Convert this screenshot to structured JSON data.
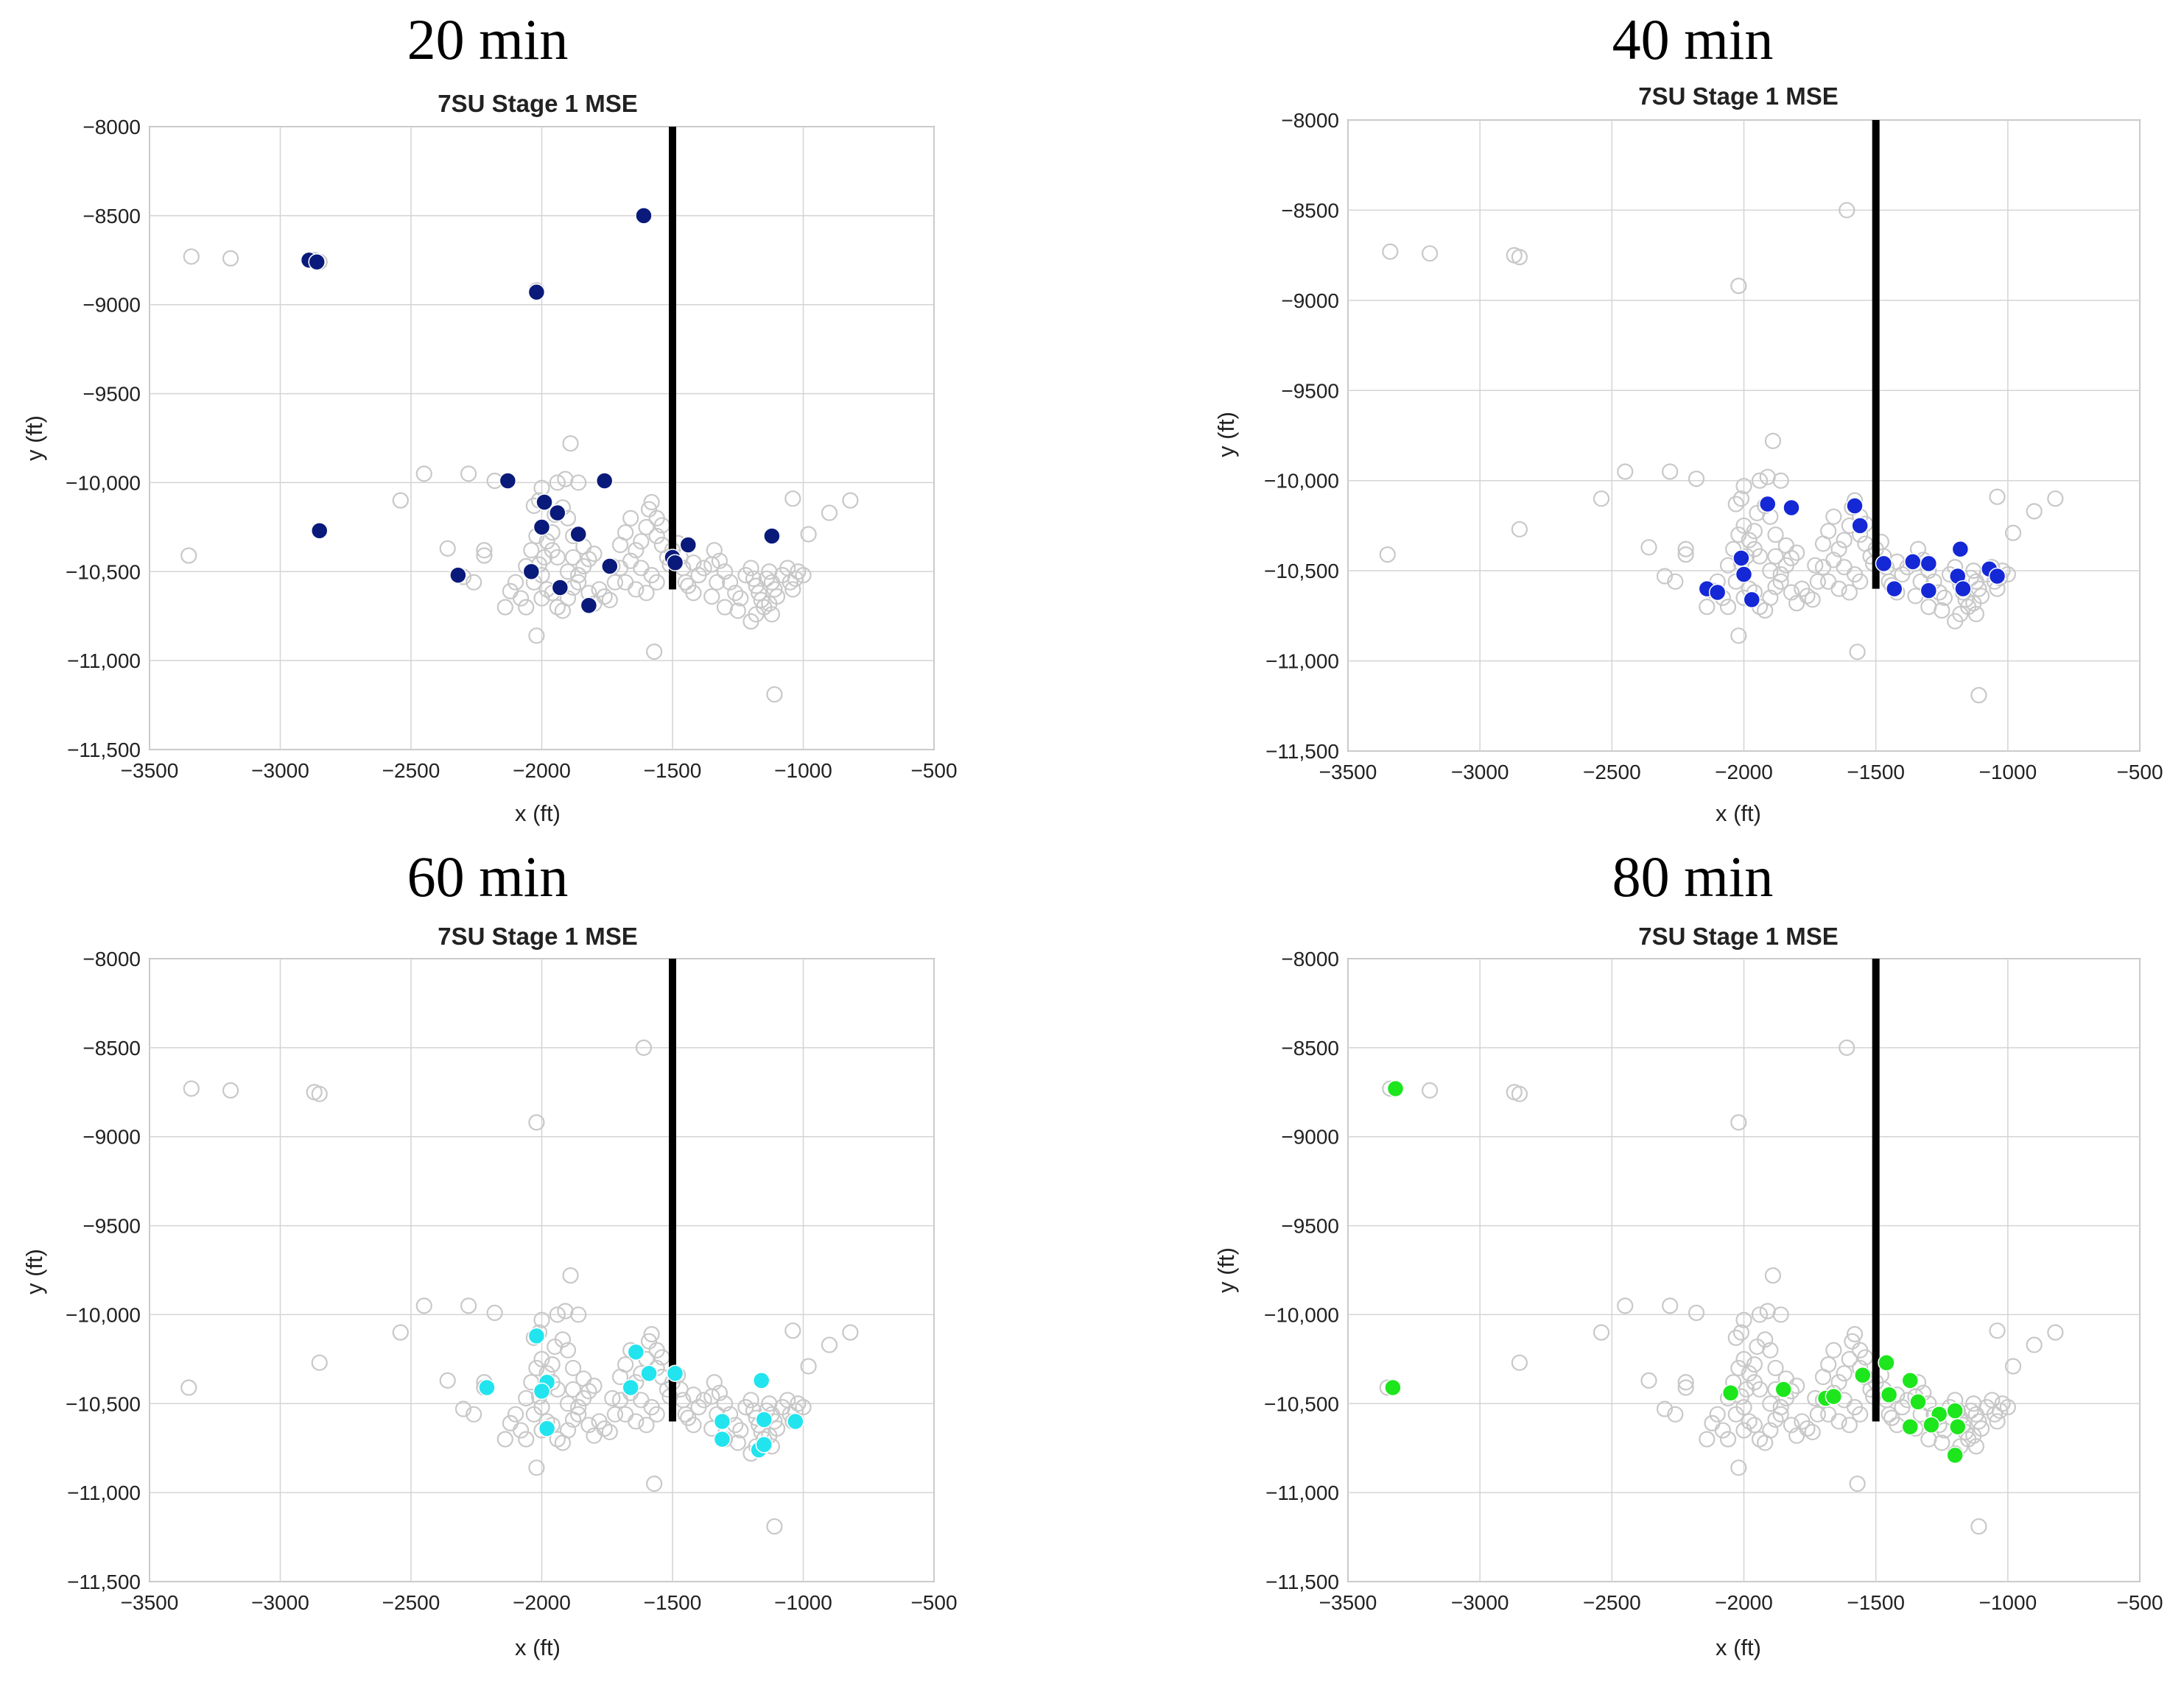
{
  "chart_data": [
    {
      "type": "scatter",
      "heading": "20 min",
      "title": "7SU Stage 1 MSE",
      "xlabel": "x (ft)",
      "ylabel": "y (ft)",
      "xlim": [
        -3500,
        -500
      ],
      "ylim": [
        -11500,
        -8000
      ],
      "xticks": [
        -3500,
        -3000,
        -2500,
        -2000,
        -1500,
        -1000,
        -500
      ],
      "xtick_labels": [
        "−3500",
        "−3000",
        "−2500",
        "−2000",
        "−1500",
        "−1000",
        "−500"
      ],
      "yticks": [
        -8000,
        -8500,
        -9000,
        -9500,
        -10000,
        -10500,
        -11000,
        -11500
      ],
      "ytick_labels": [
        "−8000",
        "−8500",
        "−9000",
        "−9500",
        "−10,000",
        "−10,500",
        "−11,000",
        "−11,500"
      ],
      "grid": true,
      "well": {
        "x": -1500,
        "y_top": -8000,
        "y_bottom": -10600
      },
      "highlight_color": "#0a1a7a",
      "series": [
        {
          "name": "background events",
          "x": [],
          "y": []
        },
        {
          "name": "events",
          "x": [
            -2890,
            -2860,
            -1610,
            -2020,
            -2850,
            -2130,
            -1990,
            -1940,
            -1760,
            -1860,
            -2040,
            -2000,
            -2320,
            -1930,
            -1740,
            -1820,
            -1500,
            -1440,
            -1120,
            -1490
          ],
          "y": [
            -8750,
            -8760,
            -8500,
            -8930,
            -10270,
            -9990,
            -10110,
            -10170,
            -9990,
            -10290,
            -10500,
            -10250,
            -10520,
            -10590,
            -10470,
            -10690,
            -10420,
            -10350,
            -10300,
            -10450
          ]
        }
      ]
    },
    {
      "type": "scatter",
      "heading": "40 min",
      "title": "7SU Stage 1 MSE",
      "xlabel": "x (ft)",
      "ylabel": "y (ft)",
      "xlim": [
        -3500,
        -500
      ],
      "ylim": [
        -11500,
        -8000
      ],
      "xticks": [
        -3500,
        -3000,
        -2500,
        -2000,
        -1500,
        -1000,
        -500
      ],
      "xtick_labels": [
        "−3500",
        "−3000",
        "−2500",
        "−2000",
        "−1500",
        "−1000",
        "−500"
      ],
      "yticks": [
        -8000,
        -8500,
        -9000,
        -9500,
        -10000,
        -10500,
        -11000,
        -11500
      ],
      "ytick_labels": [
        "−8000",
        "−8500",
        "−9000",
        "−9500",
        "−10,000",
        "−10,500",
        "−11,000",
        "−11,500"
      ],
      "grid": true,
      "well": {
        "x": -1500,
        "y_top": -8000,
        "y_bottom": -10600
      },
      "highlight_color": "#1428d6",
      "series": [
        {
          "name": "background events",
          "x": [],
          "y": []
        },
        {
          "name": "events",
          "x": [
            -1910,
            -1820,
            -1580,
            -1560,
            -1470,
            -2010,
            -2000,
            -2140,
            -2100,
            -1970,
            -1360,
            -1300,
            -1180,
            -1190,
            -1070,
            -1040,
            -1430,
            -1300,
            -1170
          ],
          "y": [
            -10130,
            -10150,
            -10140,
            -10250,
            -10460,
            -10430,
            -10520,
            -10600,
            -10620,
            -10660,
            -10450,
            -10460,
            -10380,
            -10530,
            -10490,
            -10530,
            -10600,
            -10610,
            -10600
          ]
        }
      ]
    },
    {
      "type": "scatter",
      "heading": "60 min",
      "title": "7SU Stage 1 MSE",
      "xlabel": "x (ft)",
      "ylabel": "y (ft)",
      "xlim": [
        -3500,
        -500
      ],
      "ylim": [
        -11500,
        -8000
      ],
      "xticks": [
        -3500,
        -3000,
        -2500,
        -2000,
        -1500,
        -1000,
        -500
      ],
      "xtick_labels": [
        "−3500",
        "−3000",
        "−2500",
        "−2000",
        "−1500",
        "−1000",
        "−500"
      ],
      "yticks": [
        -8000,
        -8500,
        -9000,
        -9500,
        -10000,
        -10500,
        -11000,
        -11500
      ],
      "ytick_labels": [
        "−8000",
        "−8500",
        "−9000",
        "−9500",
        "−10,000",
        "−10,500",
        "−11,000",
        "−11,500"
      ],
      "grid": true,
      "well": {
        "x": -1500,
        "y_top": -8000,
        "y_bottom": -10600
      },
      "highlight_color": "#22e4ee",
      "series": [
        {
          "name": "background events",
          "x": [],
          "y": []
        },
        {
          "name": "events",
          "x": [
            -2020,
            -1640,
            -1590,
            -1490,
            -2210,
            -1980,
            -2000,
            -1660,
            -1160,
            -1310,
            -1150,
            -1030,
            -1310,
            -1170,
            -1150,
            -1980
          ],
          "y": [
            -10120,
            -10210,
            -10330,
            -10330,
            -10410,
            -10380,
            -10430,
            -10410,
            -10370,
            -10600,
            -10590,
            -10600,
            -10700,
            -10760,
            -10730,
            -10640
          ]
        }
      ]
    },
    {
      "type": "scatter",
      "heading": "80 min",
      "title": "7SU Stage 1 MSE",
      "xlabel": "x (ft)",
      "ylabel": "y (ft)",
      "xlim": [
        -3500,
        -500
      ],
      "ylim": [
        -11500,
        -8000
      ],
      "xticks": [
        -3500,
        -3000,
        -2500,
        -2000,
        -1500,
        -1000,
        -500
      ],
      "xtick_labels": [
        "−3500",
        "−3000",
        "−2500",
        "−2000",
        "−1500",
        "−1000",
        "−500"
      ],
      "yticks": [
        -8000,
        -8500,
        -9000,
        -9500,
        -10000,
        -10500,
        -11000,
        -11500
      ],
      "ytick_labels": [
        "−8000",
        "−8500",
        "−9000",
        "−9500",
        "−10,000",
        "−10,500",
        "−11,000",
        "−11,500"
      ],
      "grid": true,
      "well": {
        "x": -1500,
        "y_top": -8000,
        "y_bottom": -10600
      },
      "highlight_color": "#1de61d",
      "series": [
        {
          "name": "background events",
          "x": [],
          "y": []
        },
        {
          "name": "events",
          "x": [
            -3320,
            -3330,
            -2050,
            -1850,
            -1690,
            -1660,
            -1550,
            -1460,
            -1370,
            -1340,
            -1260,
            -1200,
            -1370,
            -1290,
            -1190,
            -1200,
            -1450
          ],
          "y": [
            -8730,
            -10410,
            -10440,
            -10420,
            -10470,
            -10460,
            -10340,
            -10270,
            -10370,
            -10490,
            -10560,
            -10540,
            -10630,
            -10620,
            -10630,
            -10790,
            -10450
          ]
        }
      ]
    }
  ]
}
